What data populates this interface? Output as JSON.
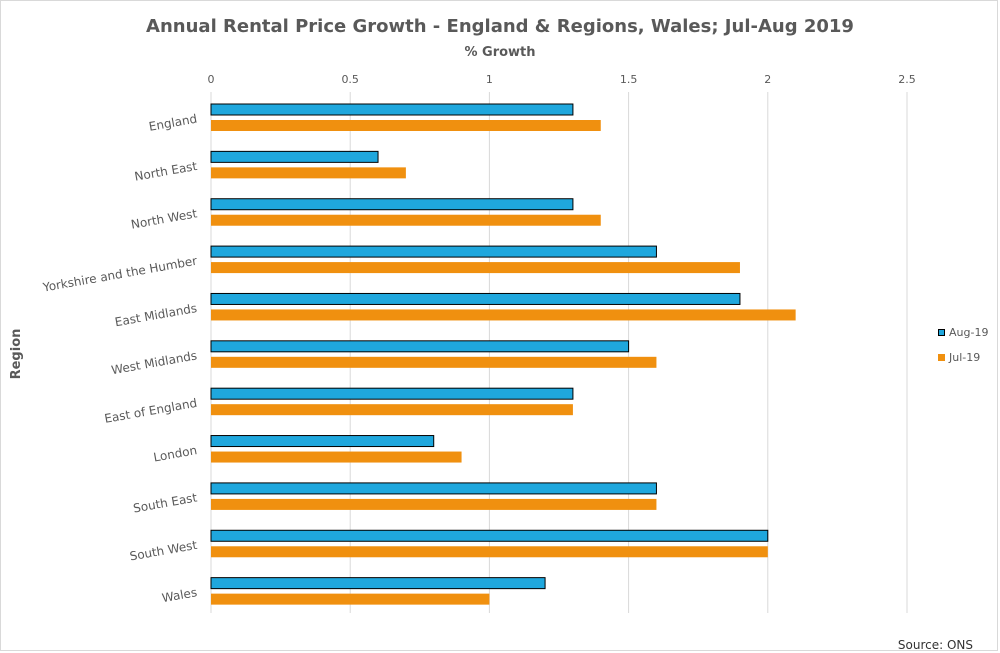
{
  "chart_data": {
    "type": "bar",
    "orientation": "horizontal",
    "title": "Annual Rental Price Growth - England & Regions, Wales; Jul-Aug 2019",
    "xlabel": "% Growth",
    "ylabel": "Region",
    "xlim": [
      0,
      2.5
    ],
    "x_ticks": [
      "0",
      "0.5",
      "1",
      "1.5",
      "2",
      "2.5"
    ],
    "x_axis_position": "top",
    "grid": true,
    "legend_position": "right",
    "source": "Source: ONS",
    "categories": [
      "England",
      "North East",
      "North West",
      "Yorkshire and the Humber",
      "East Midlands",
      "West Midlands",
      "East of England",
      "London",
      "South East",
      "South West",
      "Wales"
    ],
    "series": [
      {
        "name": "Aug-19",
        "color": "#1fa7dd",
        "values": [
          1.3,
          0.6,
          1.3,
          1.6,
          1.9,
          1.5,
          1.3,
          0.8,
          1.6,
          2.0,
          1.2
        ]
      },
      {
        "name": "Jul-19",
        "color": "#f0900f",
        "values": [
          1.4,
          0.7,
          1.4,
          1.9,
          2.1,
          1.6,
          1.3,
          0.9,
          1.6,
          2.0,
          1.0
        ]
      }
    ]
  }
}
